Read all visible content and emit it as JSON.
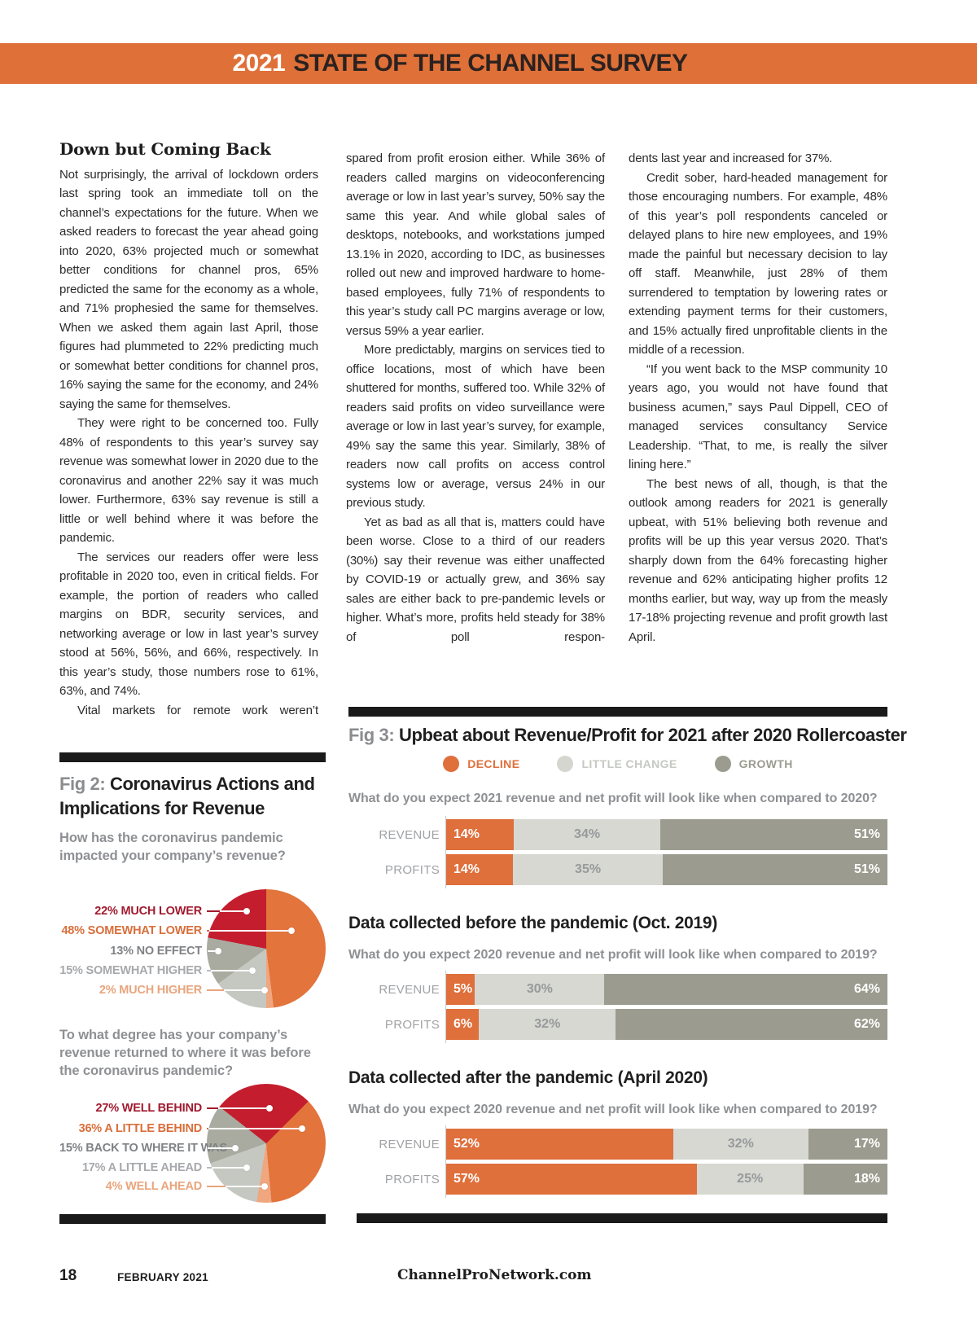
{
  "banner": {
    "year": "2021",
    "title": "STATE OF THE CHANNEL SURVEY"
  },
  "article": {
    "heading": "Down but Coming Back",
    "columns": [
      {
        "paragraphs": [
          "Not surprisingly, the arrival of lockdown orders last spring took an immediate toll on the channel’s expectations for the future. When we asked readers to forecast the year ahead going into 2020, 63% projected much or somewhat better conditions for channel pros, 65% predicted the same for the economy as a whole, and 71% prophesied the same for themselves. When we asked them again last April, those figures had plummeted to 22% predicting much or somewhat better conditions for channel pros, 16% saying the same for the economy, and 24% saying the same for themselves.",
          "They were right to be concerned too. Fully 48% of respondents to this year’s survey say revenue was somewhat lower in 2020 due to the coronavirus and another 22% say it was much lower. Furthermore, 63% say revenue is still a little or well behind where it was before the pandemic.",
          "The services our readers offer were less profitable in 2020 too, even in critical fields. For example, the portion of readers who called margins on BDR, security services, and networking average or low in last year’s survey stood at 56%, 56%, and 66%, respectively. In this year’s study, those numbers rose to 61%, 63%, and 74%.",
          "Vital markets for remote work weren’t"
        ]
      },
      {
        "paragraphs": [
          "spared from profit erosion either. While 36% of readers called margins on videoconferencing average or low in last year’s survey, 50% say the same this year. And while global sales of desktops, notebooks, and workstations jumped 13.1% in 2020, according to IDC, as businesses rolled out new and improved hardware to home-based employees, fully 71% of respondents to this year’s study call PC margins average or low, versus 59% a year earlier.",
          "More predictably, margins on services tied to office locations, most of which have been shuttered for months, suffered too. While 32% of readers said profits on video surveillance were average or low in last year’s survey, for example, 49% say the same this year. Similarly, 38% of readers now call profits on access control systems low or average, versus 24% in our previous study.",
          "Yet as bad as all that is, matters could have been worse. Close to a third of our readers (30%) say their revenue was either unaffected by COVID-19 or actually grew, and 36% say sales are either back to pre-pandemic levels or higher. What’s more, profits held steady for 38% of poll respon-"
        ]
      },
      {
        "paragraphs": [
          "dents last year and increased for 37%.",
          "Credit sober, hard-headed management for those encouraging numbers. For example, 48% of this year’s poll respondents canceled or delayed plans to hire new employees, and 19% made the painful but necessary decision to lay off staff. Meanwhile, just 28% of them surrendered to temptation by lowering rates or extending payment terms for their customers, and 15% actually fired unprofitable clients in the middle of a recession.",
          "“If you went back to the MSP community 10 years ago, you would not have found that business acumen,” says Paul Dippell, CEO of managed services consultancy Service Leadership. “That, to me, is really the silver lining here.”",
          "The best news of all, though, is that the outlook among readers for 2021 is generally upbeat, with 51% believing both revenue and profits will be up this year versus 2020. That’s sharply down from the 64% forecasting higher revenue and 62% anticipating higher profits 12 months earlier, but way, way up from the measly 17-18% projecting revenue and profit growth last April."
        ]
      }
    ]
  },
  "fig2": {
    "label": "Fig 2:",
    "title": "Coronavirus Actions and Implications for Revenue",
    "pies": [
      {
        "question": "How has the coronavirus pandemic impacted your company’s revenue?",
        "start_angle": 0,
        "sequence": [
          1,
          4,
          3,
          2,
          0
        ],
        "slices": [
          {
            "label": "22% MUCH LOWER",
            "value": 22,
            "color": "#C41E2E"
          },
          {
            "label": "48% SOMEWHAT LOWER",
            "value": 48,
            "color": "#E2743C"
          },
          {
            "label": "13% NO EFFECT",
            "value": 13,
            "color": "#A9ABA0"
          },
          {
            "label": "15% SOMEWHAT HIGHER",
            "value": 15,
            "color": "#C5C7C1"
          },
          {
            "label": "2% MUCH HIGHER",
            "value": 2,
            "color": "#F0A67E"
          }
        ]
      },
      {
        "question": "To what degree has your company’s revenue returned to where it was before the coronavirus pandemic?",
        "start_angle": -52,
        "sequence": [
          0,
          1,
          4,
          3,
          2
        ],
        "slices": [
          {
            "label": "27% WELL BEHIND",
            "value": 27,
            "color": "#C41E2E"
          },
          {
            "label": "36% A LITTLE BEHIND",
            "value": 36,
            "color": "#E2743C"
          },
          {
            "label": "15% BACK TO WHERE IT WAS",
            "value": 15,
            "color": "#A9ABA0"
          },
          {
            "label": "17% A LITTLE AHEAD",
            "value": 17,
            "color": "#C5C7C1"
          },
          {
            "label": "4% WELL AHEAD",
            "value": 4,
            "color": "#F0A67E"
          }
        ]
      }
    ]
  },
  "fig3": {
    "label": "Fig 3:",
    "title": "Upbeat about Revenue/Profit for 2021 after 2020 Rollercoaster",
    "legend": [
      {
        "label": "DECLINE",
        "color": "#DF6F3B"
      },
      {
        "label": "LITTLE CHANGE",
        "color": "#D4D6CF"
      },
      {
        "label": "GROWTH",
        "color": "#9B9C8F"
      }
    ],
    "charts": [
      {
        "question": "What do you expect 2021 revenue and net profit will look like when compared to 2020?",
        "rows": [
          {
            "label": "REVENUE",
            "values": [
              14,
              34,
              51
            ],
            "display": [
              "14%",
              "34%",
              "51%"
            ]
          },
          {
            "label": "PROFITS",
            "values": [
              14,
              35,
              51
            ],
            "display": [
              "14%",
              "35%",
              "51%"
            ]
          }
        ]
      },
      {
        "heading": "Data collected before the pandemic (Oct. 2019)",
        "question": "What do you expect 2020 revenue and net profit will look like when compared to 2019?",
        "rows": [
          {
            "label": "REVENUE",
            "values": [
              5,
              30,
              64
            ],
            "display": [
              "5%",
              "30%",
              "64%"
            ]
          },
          {
            "label": "PROFITS",
            "values": [
              6,
              32,
              62
            ],
            "display": [
              "6%",
              "32%",
              "62%"
            ]
          }
        ]
      },
      {
        "heading": "Data collected after the pandemic (April 2020)",
        "question": "What do you expect 2020 revenue and net profit will look like when compared to 2019?",
        "rows": [
          {
            "label": "REVENUE",
            "values": [
              52,
              32,
              17
            ],
            "display": [
              "52%",
              "32%",
              "17%"
            ]
          },
          {
            "label": "PROFITS",
            "values": [
              57,
              25,
              18
            ],
            "display": [
              "57%",
              "25%",
              "18%"
            ]
          }
        ]
      }
    ]
  },
  "footer": {
    "page_number": "18",
    "issue": "FEBRUARY 2021",
    "site": "ChannelProNetwork.com"
  },
  "colors": {
    "banner_orange": "#DF7038",
    "chart_orange": "#DF6F3B",
    "chart_light_gray": "#D6D8D1",
    "chart_olive": "#9B9C8F",
    "pie_red": "#C41E2E",
    "pie_peach": "#F0A67E",
    "rule_black": "#1A1A1A",
    "label_gray": "#8E9093"
  },
  "chart_data": [
    {
      "type": "pie",
      "title": "How has the coronavirus pandemic impacted your company’s revenue?",
      "labels": [
        "MUCH LOWER",
        "SOMEWHAT LOWER",
        "NO EFFECT",
        "SOMEWHAT HIGHER",
        "MUCH HIGHER"
      ],
      "values": [
        22,
        48,
        13,
        15,
        2
      ]
    },
    {
      "type": "pie",
      "title": "To what degree has your company’s revenue returned to where it was before the coronavirus pandemic?",
      "labels": [
        "WELL BEHIND",
        "A LITTLE BEHIND",
        "BACK TO WHERE IT WAS",
        "A LITTLE AHEAD",
        "WELL AHEAD"
      ],
      "values": [
        27,
        36,
        15,
        17,
        4
      ]
    },
    {
      "type": "bar",
      "title": "Upbeat about Revenue/Profit for 2021 after 2020 Rollercoaster",
      "legend": [
        "DECLINE",
        "LITTLE CHANGE",
        "GROWTH"
      ],
      "groups": [
        {
          "question": "What do you expect 2021 revenue and net profit will look like when compared to 2020?",
          "categories": [
            "REVENUE",
            "PROFITS"
          ],
          "series": [
            {
              "name": "DECLINE",
              "values": [
                14,
                14
              ]
            },
            {
              "name": "LITTLE CHANGE",
              "values": [
                34,
                35
              ]
            },
            {
              "name": "GROWTH",
              "values": [
                51,
                51
              ]
            }
          ]
        },
        {
          "question": "Data collected before the pandemic (Oct. 2019) — What do you expect 2020 revenue and net profit will look like when compared to 2019?",
          "categories": [
            "REVENUE",
            "PROFITS"
          ],
          "series": [
            {
              "name": "DECLINE",
              "values": [
                5,
                6
              ]
            },
            {
              "name": "LITTLE CHANGE",
              "values": [
                30,
                32
              ]
            },
            {
              "name": "GROWTH",
              "values": [
                64,
                62
              ]
            }
          ]
        },
        {
          "question": "Data collected after the pandemic (April 2020) — What do you expect 2020 revenue and net profit will look like when compared to 2019?",
          "categories": [
            "REVENUE",
            "PROFITS"
          ],
          "series": [
            {
              "name": "DECLINE",
              "values": [
                52,
                57
              ]
            },
            {
              "name": "LITTLE CHANGE",
              "values": [
                32,
                25
              ]
            },
            {
              "name": "GROWTH",
              "values": [
                17,
                18
              ]
            }
          ]
        }
      ]
    }
  ]
}
